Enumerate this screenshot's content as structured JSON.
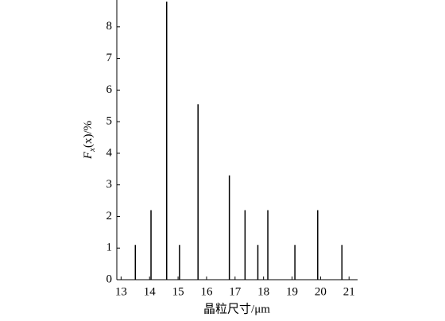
{
  "chart_data": {
    "type": "stem",
    "y_label": {
      "main": "F",
      "sub": "x",
      "rest": "(x)/%"
    },
    "x_label": "晶粒尺寸/μm",
    "x": [
      13.5,
      14.05,
      14.6,
      15.05,
      15.7,
      16.8,
      17.35,
      17.8,
      18.15,
      19.1,
      19.9,
      20.75
    ],
    "values": [
      1.1,
      2.2,
      8.8,
      1.1,
      5.55,
      3.3,
      2.2,
      1.1,
      2.2,
      1.1,
      2.2,
      1.1
    ],
    "color": "#000000",
    "xlim": [
      12.85,
      21.3
    ],
    "xticks": [
      13,
      14,
      15,
      16,
      17,
      18,
      19,
      20,
      21
    ],
    "ylim": [
      0,
      8.85
    ],
    "yticks": [
      0,
      1,
      2,
      3,
      4,
      5,
      6,
      7,
      8
    ]
  }
}
